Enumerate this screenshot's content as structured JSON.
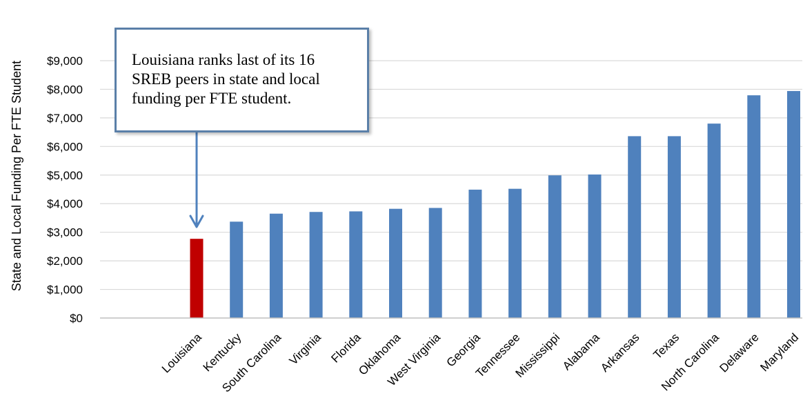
{
  "chart_data": {
    "type": "bar",
    "ylabel": "State and Local Funding Per FTE Student",
    "xlabel": "",
    "ylim": [
      0,
      9000
    ],
    "yticks": [
      0,
      1000,
      2000,
      3000,
      4000,
      5000,
      6000,
      7000,
      8000,
      9000
    ],
    "ytick_labels": [
      "$0",
      "$1,000",
      "$2,000",
      "$3,000",
      "$4,000",
      "$5,000",
      "$6,000",
      "$7,000",
      "$8,000",
      "$9,000"
    ],
    "grid": true,
    "categories": [
      "Louisiana",
      "Kentucky",
      "South Carolina",
      "Virginia",
      "Florida",
      "Oklahoma",
      "West Virginia",
      "Georgia",
      "Tennessee",
      "Mississippi",
      "Alabama",
      "Arkansas",
      "Texas",
      "North Carolina",
      "Delaware",
      "Maryland"
    ],
    "values": [
      2770,
      3370,
      3650,
      3710,
      3730,
      3820,
      3850,
      4490,
      4520,
      4990,
      5020,
      6360,
      6360,
      6800,
      7790,
      7940
    ],
    "highlight": "Louisiana",
    "colors": {
      "bar": "#4f81bd",
      "highlight": "#c00000",
      "grid": "#d9d9d9",
      "axis": "#bfbfbf",
      "annotation_border": "#5a7fa8",
      "arrow": "#4f81bd"
    },
    "annotation": {
      "text": "Louisiana ranks last of its 16\nSREB peers in state and local\nfunding per FTE student.",
      "points_to": "Louisiana"
    }
  }
}
